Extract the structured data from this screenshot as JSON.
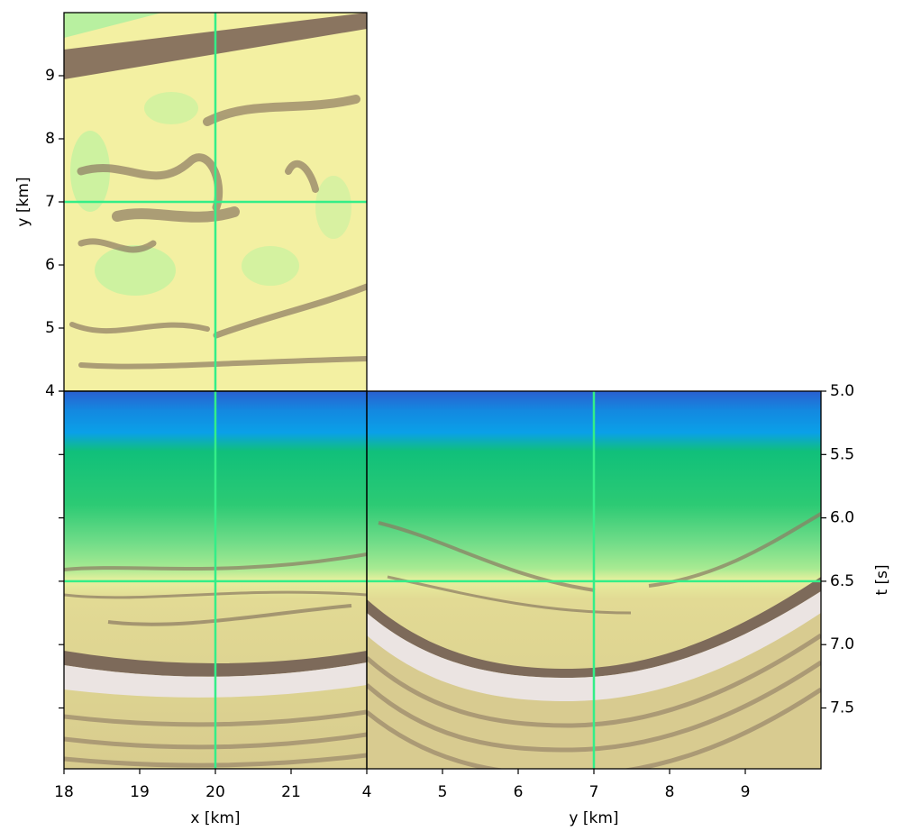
{
  "chart_data": [
    {
      "type": "image",
      "ylabel": "y [km]",
      "xlim": [
        18,
        22
      ],
      "ylim": [
        4,
        10
      ],
      "yticks": [
        4,
        5,
        6,
        7,
        8,
        9
      ],
      "crosshair": {
        "x": 20,
        "y": 7
      },
      "crosshair_color": "#33ee88"
    },
    {
      "type": "image",
      "xlabel": "x [km]",
      "xlim": [
        18,
        22
      ],
      "ylim": [
        7.98,
        5.0
      ],
      "xticks": [
        18,
        19,
        20,
        21
      ],
      "yticks": [
        5.0,
        5.5,
        6.0,
        6.5,
        7.0,
        7.5
      ],
      "yticklabels": false,
      "crosshair": {
        "x": 20,
        "y": 6.5
      },
      "crosshair_color": "#33ee88"
    },
    {
      "type": "image",
      "xlabel": "y [km]",
      "ylabel": "t [s]",
      "yaxis_side": "right",
      "xlim": [
        4,
        10
      ],
      "ylim": [
        7.98,
        5.0
      ],
      "xticks": [
        4,
        5,
        6,
        7,
        8,
        9
      ],
      "yticks": [
        {
          "value": 5.0,
          "label": "5.0"
        },
        {
          "value": 5.5,
          "label": "5.5"
        },
        {
          "value": 6.0,
          "label": "6.0"
        },
        {
          "value": 6.5,
          "label": "6.5"
        },
        {
          "value": 7.0,
          "label": "7.0"
        },
        {
          "value": 7.5,
          "label": "7.5"
        }
      ],
      "crosshair": {
        "x": 7,
        "y": 6.5
      },
      "crosshair_color": "#33ee88"
    }
  ]
}
